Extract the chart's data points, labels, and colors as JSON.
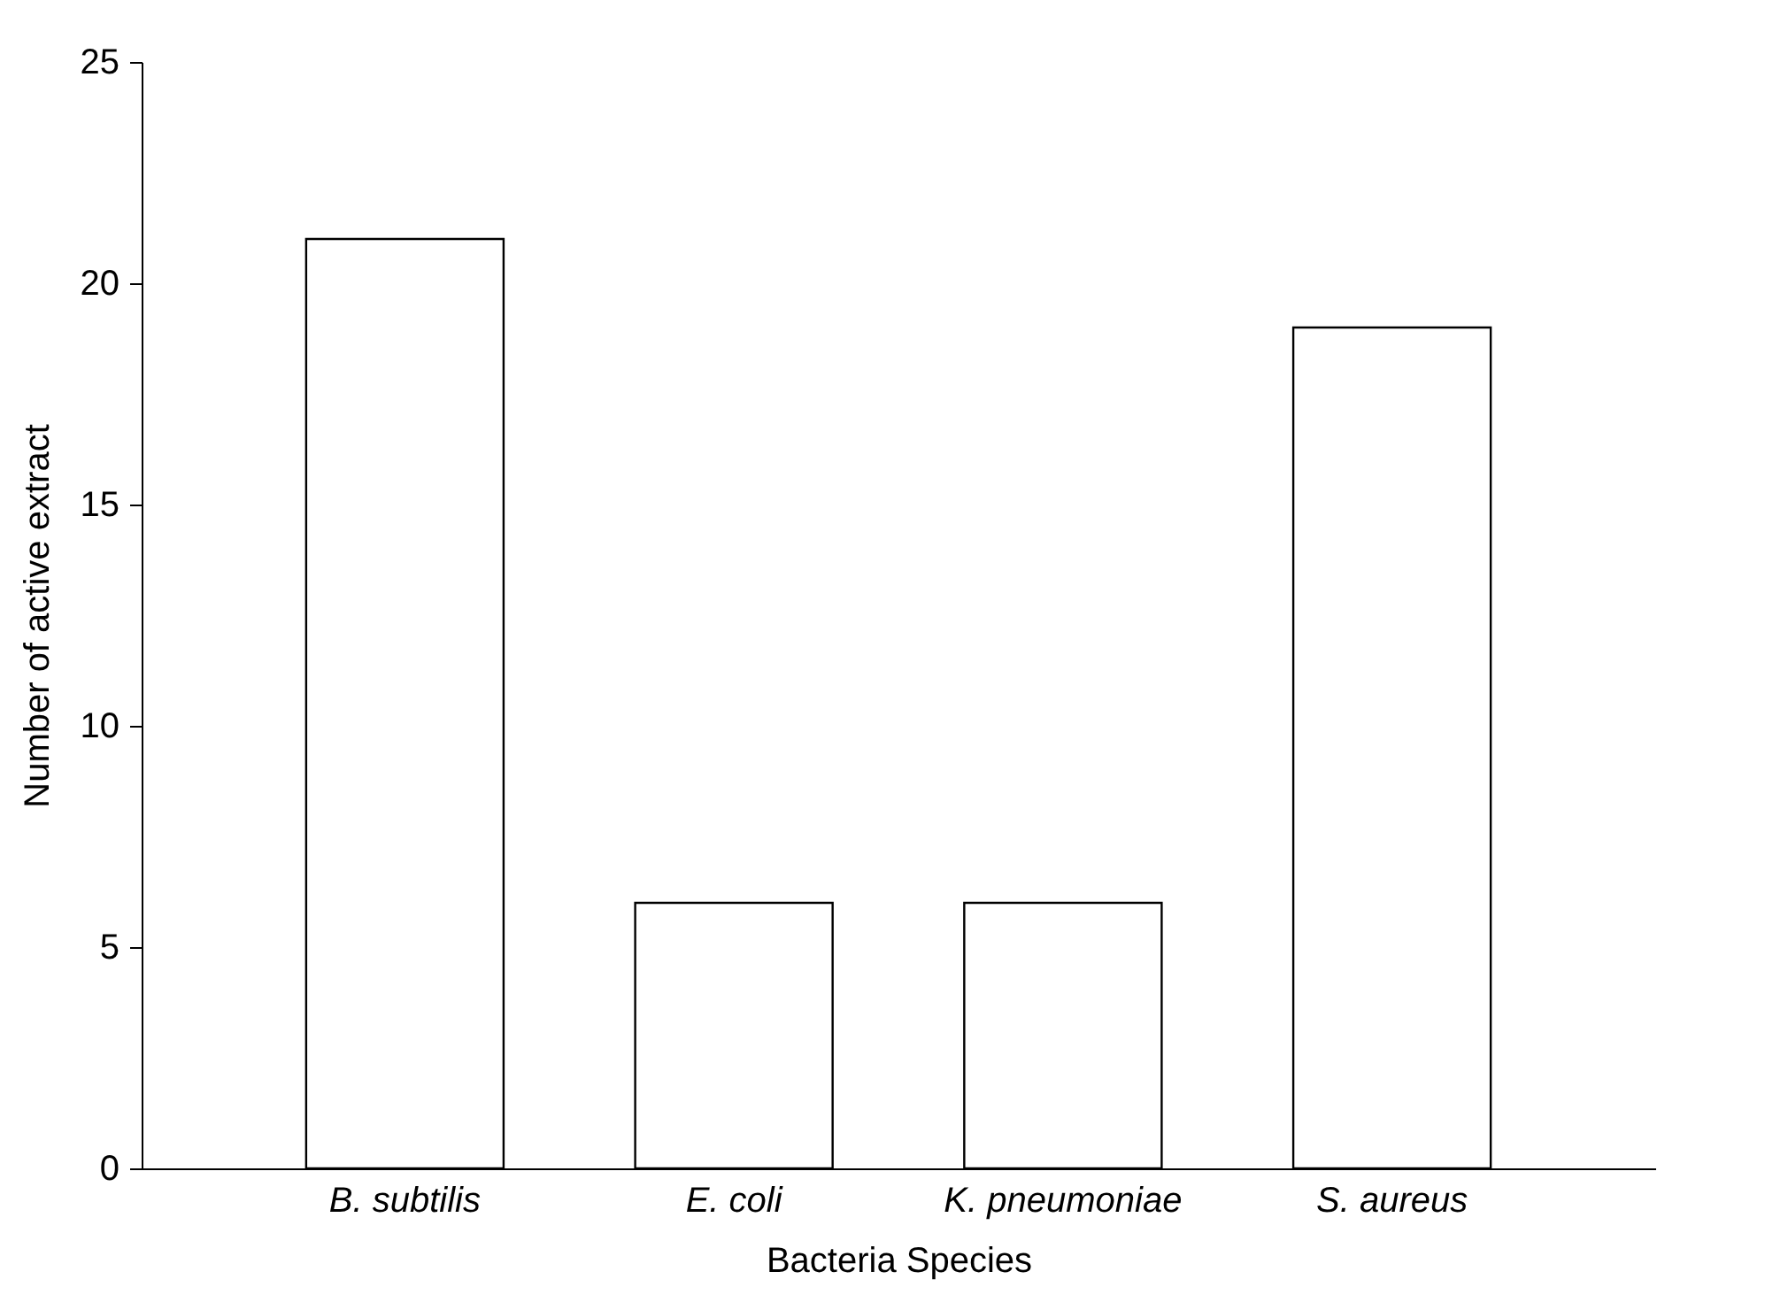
{
  "chart_data": {
    "type": "bar",
    "xlabel": "Bacteria Species",
    "ylabel": "Number of active extract",
    "categories": [
      "B. subtilis",
      "E. coli",
      "K. pneumoniae",
      "S. aureus"
    ],
    "values": [
      21,
      6,
      6,
      19
    ],
    "color": "#ffffff",
    "ylim": [
      0,
      25
    ],
    "yticks": [
      0,
      5,
      10,
      15,
      20,
      25
    ],
    "grid": false
  }
}
